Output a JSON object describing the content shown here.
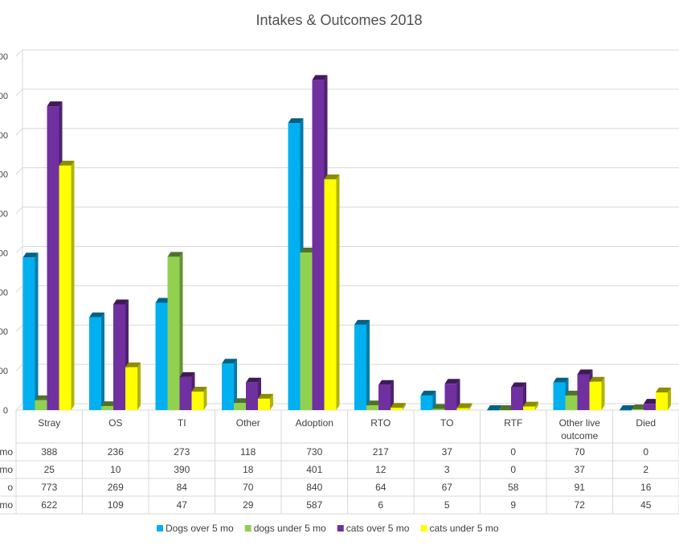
{
  "chart_data": {
    "type": "bar",
    "title": "Intakes & Outcomes 2018",
    "categories": [
      "Stray",
      "OS",
      "TI",
      "Other",
      "Adoption",
      "RTO",
      "TO",
      "RTF",
      "Other live outcome",
      "Died"
    ],
    "series": [
      {
        "name": "Dogs over 5 mo",
        "color": "#00b0f0",
        "values": [
          388,
          236,
          273,
          118,
          730,
          217,
          37,
          0,
          70,
          0
        ]
      },
      {
        "name": "dogs under 5 mo",
        "color": "#92d050",
        "values": [
          25,
          10,
          390,
          18,
          401,
          12,
          3,
          0,
          37,
          2
        ]
      },
      {
        "name": "cats over 5 mo",
        "color": "#7030a0",
        "values": [
          773,
          269,
          84,
          70,
          840,
          64,
          67,
          58,
          91,
          16
        ]
      },
      {
        "name": "cats under 5 mo",
        "color": "#ffff00",
        "values": [
          622,
          109,
          47,
          29,
          587,
          6,
          5,
          9,
          72,
          45
        ]
      }
    ],
    "table_row_labels": [
      "mo",
      "mo",
      "o",
      "mo"
    ],
    "ylim": [
      0,
      900
    ],
    "yticks": [
      0,
      100,
      200,
      300,
      400,
      500,
      600,
      700,
      800,
      900
    ],
    "ytick_labels": [
      "0",
      "00",
      "00",
      "00",
      "00",
      "00",
      "00",
      "00",
      "00",
      "00"
    ],
    "grid": true,
    "legend_position": "bottom"
  }
}
